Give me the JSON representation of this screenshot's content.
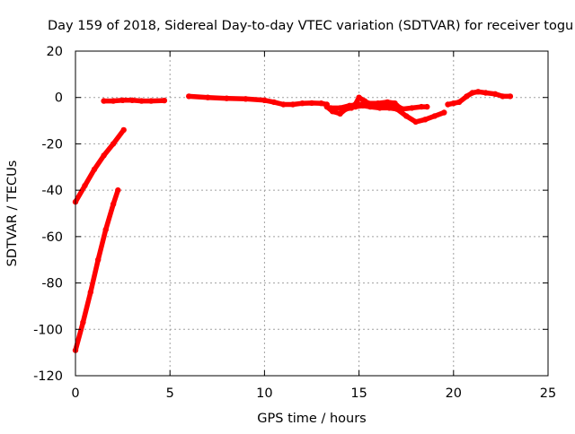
{
  "chart_data": {
    "type": "scatter",
    "title": "Day 159 of 2018, Sidereal Day-to-day VTEC variation (SDTVAR) for receiver togu",
    "xlabel": "GPS time / hours",
    "ylabel": "SDTVAR / TECUs",
    "xlim": [
      0,
      25
    ],
    "ylim": [
      -120,
      20
    ],
    "xticks": [
      0,
      5,
      10,
      15,
      20,
      25
    ],
    "yticks": [
      -120,
      -100,
      -80,
      -60,
      -40,
      -20,
      0,
      20
    ],
    "grid": true,
    "series_color": "#ff0000",
    "segments": [
      [
        [
          0.0,
          -45
        ],
        [
          0.5,
          -38
        ],
        [
          1.0,
          -31
        ],
        [
          1.5,
          -25
        ],
        [
          2.0,
          -20
        ],
        [
          2.55,
          -14
        ]
      ],
      [
        [
          0.0,
          -109
        ],
        [
          0.4,
          -97
        ],
        [
          0.8,
          -84
        ],
        [
          1.2,
          -70
        ],
        [
          1.6,
          -57
        ],
        [
          2.0,
          -46
        ],
        [
          2.25,
          -40
        ]
      ],
      [
        [
          1.5,
          -1.5
        ],
        [
          2.0,
          -1.5
        ],
        [
          2.5,
          -1.2
        ],
        [
          3.0,
          -1.2
        ],
        [
          3.5,
          -1.5
        ],
        [
          4.0,
          -1.5
        ],
        [
          4.7,
          -1.3
        ]
      ],
      [
        [
          6.0,
          0.5
        ],
        [
          7.0,
          0.0
        ],
        [
          8.0,
          -0.4
        ],
        [
          9.0,
          -0.6
        ],
        [
          10.0,
          -1.2
        ],
        [
          10.5,
          -2.0
        ],
        [
          11.0,
          -3.0
        ],
        [
          11.5,
          -3.0
        ],
        [
          12.0,
          -2.5
        ],
        [
          12.5,
          -2.4
        ],
        [
          13.0,
          -2.5
        ],
        [
          13.3,
          -3.0
        ]
      ],
      [
        [
          13.3,
          -4.0
        ],
        [
          13.6,
          -6.0
        ],
        [
          14.0,
          -7.0
        ],
        [
          14.3,
          -5.0
        ],
        [
          14.6,
          -4.5
        ],
        [
          14.8,
          -3.0
        ],
        [
          15.0,
          0.0
        ],
        [
          15.3,
          -1.5
        ],
        [
          15.6,
          -3.0
        ],
        [
          16.0,
          -3.0
        ],
        [
          16.4,
          -3.5
        ],
        [
          16.8,
          -2.5
        ],
        [
          17.0,
          -3.5
        ],
        [
          17.3,
          -5.0
        ],
        [
          17.8,
          -4.5
        ],
        [
          18.3,
          -4.0
        ],
        [
          18.6,
          -4.0
        ]
      ],
      [
        [
          13.5,
          -4.5
        ],
        [
          14.0,
          -4.5
        ],
        [
          14.5,
          -3.5
        ],
        [
          15.0,
          -3.0
        ],
        [
          15.5,
          -2.5
        ],
        [
          16.0,
          -2.5
        ],
        [
          16.5,
          -2.0
        ],
        [
          16.9,
          -2.5
        ]
      ],
      [
        [
          14.8,
          -4.0
        ],
        [
          15.2,
          -3.5
        ],
        [
          15.6,
          -4.0
        ],
        [
          16.1,
          -4.5
        ],
        [
          16.6,
          -4.5
        ],
        [
          17.0,
          -5.0
        ],
        [
          17.5,
          -8.0
        ],
        [
          18.0,
          -10.5
        ],
        [
          18.5,
          -9.5
        ],
        [
          19.0,
          -8.0
        ],
        [
          19.5,
          -6.5
        ]
      ],
      [
        [
          19.7,
          -3.0
        ],
        [
          20.0,
          -2.5
        ],
        [
          20.3,
          -2.0
        ],
        [
          20.7,
          0.5
        ],
        [
          21.0,
          2.0
        ],
        [
          21.3,
          2.5
        ],
        [
          21.7,
          2.0
        ],
        [
          22.2,
          1.5
        ],
        [
          22.6,
          0.5
        ],
        [
          23.0,
          0.5
        ]
      ]
    ]
  }
}
